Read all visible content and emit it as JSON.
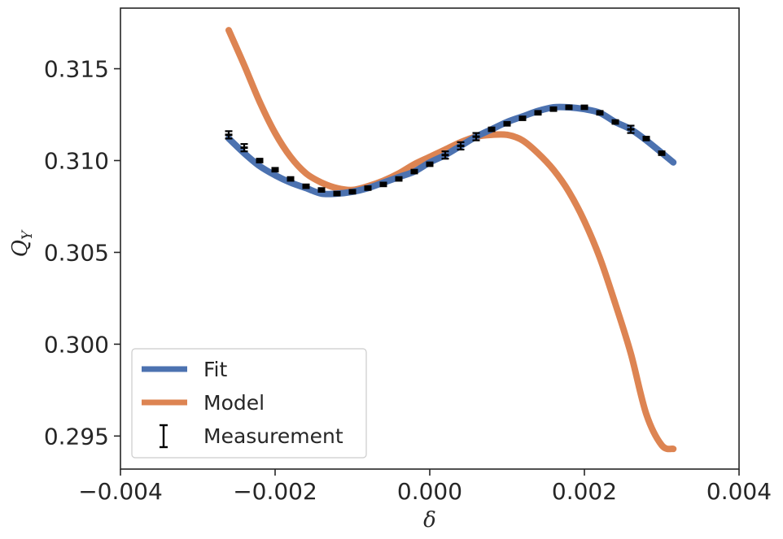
{
  "chart_data": {
    "type": "line",
    "xlabel": "δ",
    "ylabel": "Q",
    "ylabel_subscript": "Y",
    "xlim": [
      -0.004,
      0.004
    ],
    "ylim": [
      0.2932,
      0.3183
    ],
    "xticks": [
      -0.004,
      -0.002,
      0.0,
      0.002,
      0.004
    ],
    "xtick_labels": [
      "−0.004",
      "−0.002",
      "0.000",
      "0.002",
      "0.004"
    ],
    "yticks": [
      0.295,
      0.3,
      0.305,
      0.31,
      0.315
    ],
    "ytick_labels": [
      "0.295",
      "0.300",
      "0.305",
      "0.310",
      "0.315"
    ],
    "legend_position": "lower-left",
    "series": [
      {
        "name": "Fit",
        "kind": "line",
        "color": "#4c72b0",
        "x": [
          -0.0026,
          -0.0024,
          -0.0022,
          -0.002,
          -0.0018,
          -0.0016,
          -0.0014,
          -0.0012,
          -0.001,
          -0.0008,
          -0.0006,
          -0.0004,
          -0.0002,
          0.0,
          0.0002,
          0.0004,
          0.0006,
          0.0008,
          0.001,
          0.0012,
          0.0014,
          0.0016,
          0.0018,
          0.002,
          0.0022,
          0.0024,
          0.0026,
          0.0028,
          0.00315
        ],
        "y": [
          0.3112,
          0.3104,
          0.3097,
          0.3092,
          0.3088,
          0.3085,
          0.3082,
          0.3082,
          0.3083,
          0.3085,
          0.3088,
          0.3091,
          0.3094,
          0.3099,
          0.3103,
          0.3108,
          0.3113,
          0.3117,
          0.3121,
          0.3124,
          0.3127,
          0.3129,
          0.3129,
          0.3128,
          0.3126,
          0.3121,
          0.3117,
          0.3111,
          0.3099
        ]
      },
      {
        "name": "Model",
        "kind": "line",
        "color": "#dd8452",
        "x": [
          -0.0026,
          -0.0024,
          -0.0022,
          -0.002,
          -0.0018,
          -0.0016,
          -0.0014,
          -0.0012,
          -0.001,
          -0.0008,
          -0.0006,
          -0.0004,
          -0.0002,
          0.0,
          0.0002,
          0.0004,
          0.0006,
          0.0008,
          0.001,
          0.0012,
          0.0014,
          0.0016,
          0.0018,
          0.002,
          0.0022,
          0.0024,
          0.0026,
          0.0028,
          0.003,
          0.00315
        ],
        "y": [
          0.3171,
          0.3152,
          0.3132,
          0.3115,
          0.3102,
          0.3093,
          0.3088,
          0.3085,
          0.3084,
          0.3086,
          0.3089,
          0.3093,
          0.3098,
          0.3102,
          0.3106,
          0.311,
          0.3113,
          0.3114,
          0.3114,
          0.3111,
          0.3104,
          0.3095,
          0.3083,
          0.3067,
          0.3047,
          0.3022,
          0.2995,
          0.2962,
          0.2945,
          0.2943
        ]
      },
      {
        "name": "Measurement",
        "kind": "errorbar",
        "color": "#000000",
        "x": [
          -0.0026,
          -0.0024,
          -0.0022,
          -0.002,
          -0.0018,
          -0.0016,
          -0.0014,
          -0.0012,
          -0.001,
          -0.0008,
          -0.0006,
          -0.0004,
          -0.0002,
          0.0,
          0.0002,
          0.0004,
          0.0006,
          0.0008,
          0.001,
          0.0012,
          0.0014,
          0.0016,
          0.0018,
          0.002,
          0.0022,
          0.0024,
          0.0026,
          0.0028,
          0.003
        ],
        "y": [
          0.3114,
          0.3107,
          0.31,
          0.3095,
          0.309,
          0.3086,
          0.3084,
          0.3082,
          0.3083,
          0.3085,
          0.3087,
          0.309,
          0.3094,
          0.3098,
          0.3103,
          0.3108,
          0.3113,
          0.3117,
          0.312,
          0.3123,
          0.3126,
          0.3128,
          0.3129,
          0.3129,
          0.3126,
          0.3121,
          0.3117,
          0.3112,
          0.3104
        ],
        "err": [
          0.0002,
          0.0002,
          0.0001,
          0.0001,
          0.0001,
          0.0001,
          0.0001,
          0.0001,
          0.0001,
          0.0001,
          0.0001,
          0.0001,
          0.0001,
          0.0001,
          0.0002,
          0.0002,
          0.0002,
          0.0001,
          0.0001,
          0.0001,
          0.0001,
          0.0001,
          0.0001,
          0.0001,
          0.0001,
          0.0001,
          0.0002,
          0.0001,
          0.0001
        ]
      }
    ]
  }
}
